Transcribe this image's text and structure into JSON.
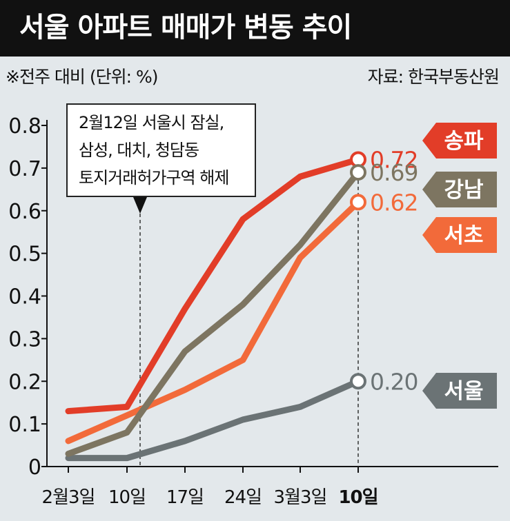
{
  "header": {
    "title": "서울 아파트 매매가 변동 추이",
    "subtitle": "※전주 대비 (단위: %)",
    "source": "자료: 한국부동산원"
  },
  "annotation": {
    "lines": [
      "2월12일 서울시 잠실,",
      "삼성, 대치, 청담동",
      "토지거래허가구역 해제"
    ],
    "x": "10일"
  },
  "chart_data": {
    "type": "line",
    "categories": [
      "2월3일",
      "10일",
      "17일",
      "24일",
      "3월3일",
      "10일"
    ],
    "ylim": [
      0,
      0.8
    ],
    "yticks": [
      "0",
      "0.1",
      "0.2",
      "0.3",
      "0.4",
      "0.5",
      "0.6",
      "0.7",
      "0.8"
    ],
    "series": [
      {
        "name": "송파",
        "color": "#e23d28",
        "values": [
          0.13,
          0.14,
          0.37,
          0.58,
          0.68,
          0.72
        ],
        "end_label": "0.72"
      },
      {
        "name": "강남",
        "color": "#7d7561",
        "values": [
          0.03,
          0.08,
          0.27,
          0.38,
          0.52,
          0.69
        ],
        "end_label": "0.69"
      },
      {
        "name": "서초",
        "color": "#f26a3a",
        "values": [
          0.06,
          0.12,
          0.18,
          0.25,
          0.49,
          0.62
        ],
        "end_label": "0.62"
      },
      {
        "name": "서울",
        "color": "#6b7375",
        "values": [
          0.02,
          0.02,
          0.06,
          0.11,
          0.14,
          0.2
        ],
        "end_label": "0.20"
      }
    ]
  }
}
